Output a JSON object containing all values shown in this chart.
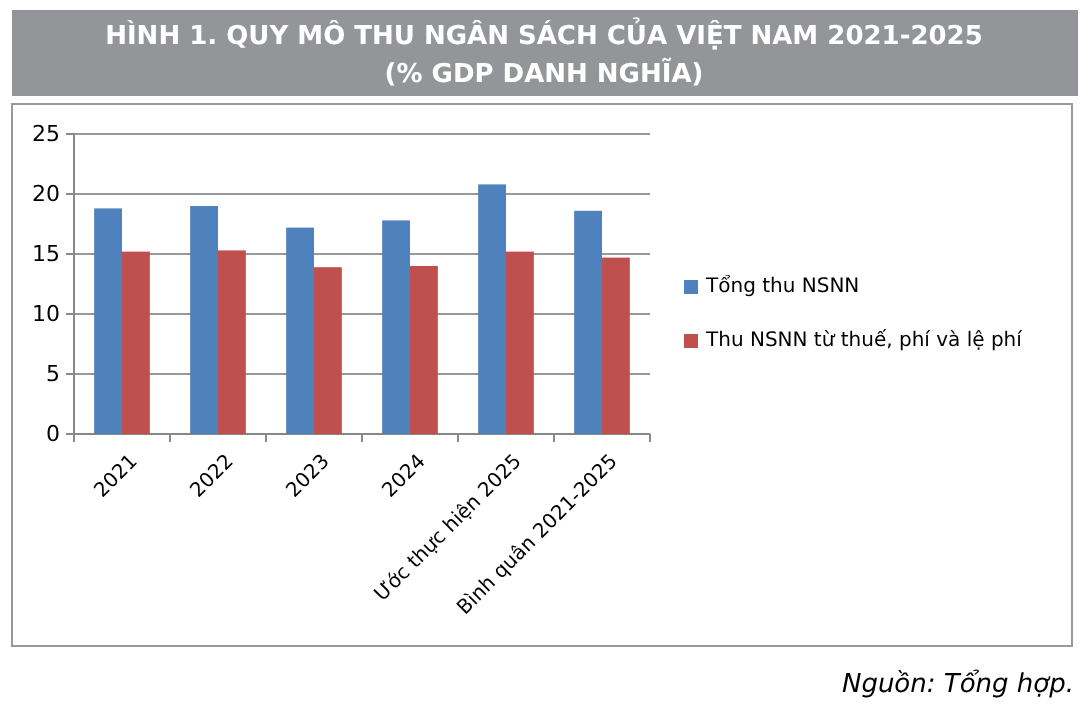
{
  "chart_data": {
    "type": "bar",
    "title": "HÌNH 1. QUY MÔ THU NGÂN SÁCH CỦA VIỆT NAM 2021-2025",
    "subtitle": "(% GDP DANH NGHĨA)",
    "categories": [
      "2021",
      "2022",
      "2023",
      "2024",
      "Ước thực hiện 2025",
      "Bình quân 2021-2025"
    ],
    "series": [
      {
        "name": "Tổng thu NSNN",
        "color": "#4f81bd",
        "values": [
          18.8,
          19.0,
          17.2,
          17.8,
          20.8,
          18.6
        ]
      },
      {
        "name": "Thu NSNN từ thuế, phí và lệ phí",
        "color": "#c0504d",
        "values": [
          15.2,
          15.3,
          13.9,
          14.0,
          15.2,
          14.7
        ]
      }
    ],
    "ylim": [
      0,
      25
    ],
    "yticks": [
      0,
      5,
      10,
      15,
      20,
      25
    ],
    "grid": "y",
    "legend": "right",
    "annotations": [
      "Nguồn: Tổng hợp."
    ]
  }
}
